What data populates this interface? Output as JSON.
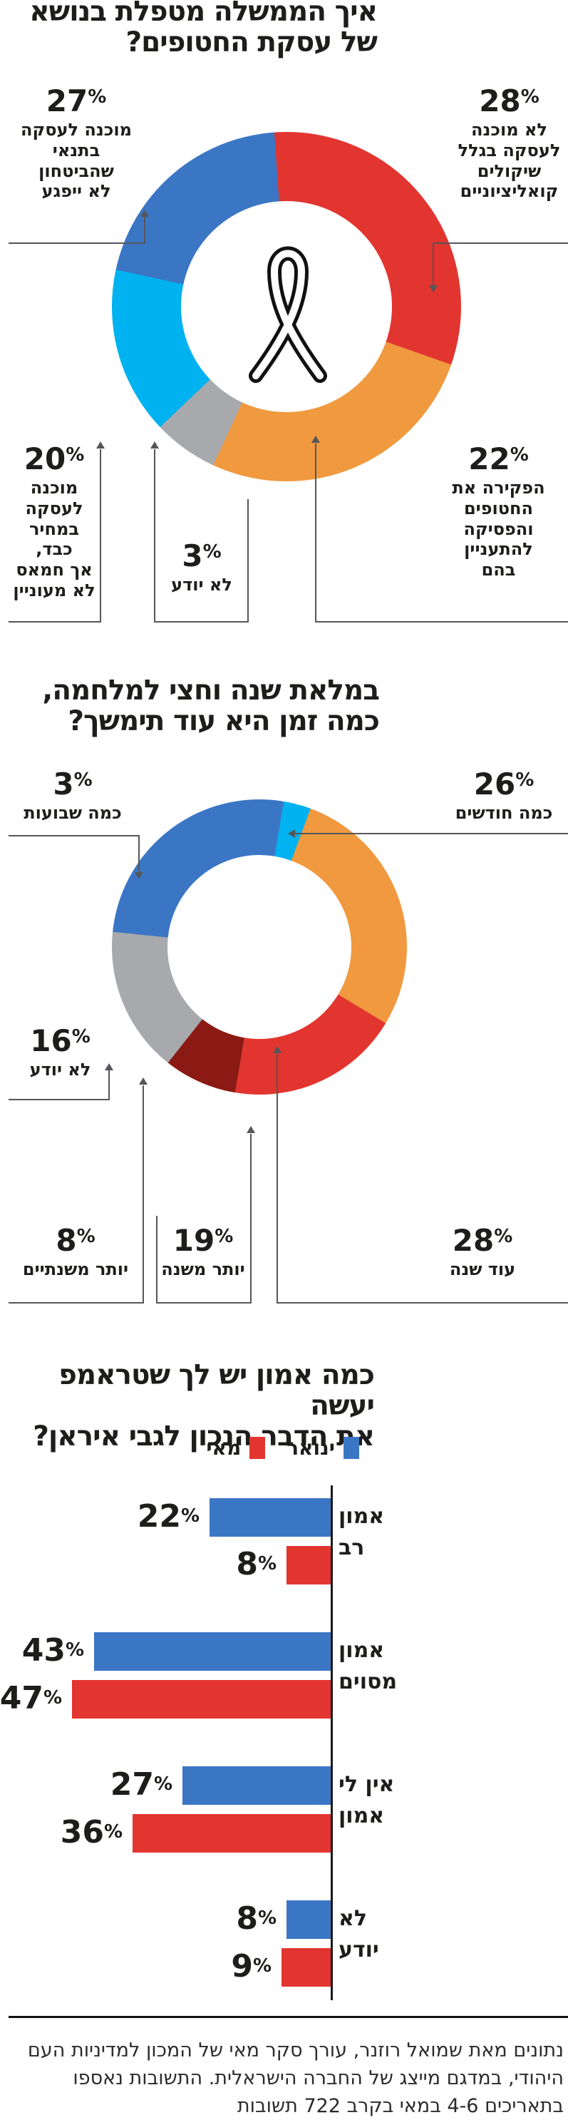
{
  "ui": {
    "percent_sign": "%"
  },
  "chart_data": [
    {
      "type": "pie",
      "subtype": "donut",
      "title": "איך הממשלה מטפלת בנושא\nשל עסקת החטופים?",
      "center_icon": "awareness-ribbon",
      "segments": [
        {
          "value": 28,
          "label": "לא מוכנה\nלעסקה בגלל\nשיקולים\nקואליציוניים",
          "color": "#e23530"
        },
        {
          "value": 22,
          "label": "הפקירה את\nהחטופים\nוהפסיקה\nלהתעניין\nבהם",
          "color": "#f0993f"
        },
        {
          "value": 3,
          "label": "לא יודע",
          "color": "#a7a9ac"
        },
        {
          "value": 20,
          "label": "מוכנה\nלעסקה\nבמחיר כבד,\nאך חמאס\nלא מעוניין",
          "color": "#00b2ef"
        },
        {
          "value": 27,
          "label": "מוכנה לעסקה\nבתנאי\nשהביטחון\nלא ייפגע",
          "color": "#3b76c4"
        }
      ]
    },
    {
      "type": "pie",
      "subtype": "donut",
      "title": "במלאת שנה וחצי למלחמה,\nכמה זמן היא עוד תימשך?",
      "segments": [
        {
          "value": 3,
          "label": "כמה שבועות",
          "color": "#00b2ef"
        },
        {
          "value": 28,
          "label": "עוד שנה",
          "color": "#f0993f"
        },
        {
          "value": 19,
          "label": "יותר משנה",
          "color": "#e23530"
        },
        {
          "value": 8,
          "label": "יותר משנתיים",
          "color": "#8a1a13"
        },
        {
          "value": 16,
          "label": "לא יודע",
          "color": "#a7a9ac"
        },
        {
          "value": 26,
          "label": "כמה חודשים",
          "color": "#3b76c4"
        }
      ]
    },
    {
      "type": "bar",
      "orientation": "horizontal",
      "title": "כמה אמון יש לך שטראמפ יעשה\nאת הדבר הנכון לגבי איראן?",
      "series": [
        {
          "name": "ינואר",
          "color": "#3b76c4"
        },
        {
          "name": "מאי",
          "color": "#e23530"
        }
      ],
      "categories": [
        "אמון\nרב",
        "אמון\nמסוים",
        "אין לי\nאמון",
        "לא\nיודע"
      ],
      "groups": [
        {
          "category": "אמון\nרב",
          "values": [
            22,
            8
          ]
        },
        {
          "category": "אמון\nמסוים",
          "values": [
            43,
            47
          ]
        },
        {
          "category": "אין לי\nאמון",
          "values": [
            27,
            36
          ]
        },
        {
          "category": "לא\nיודע",
          "values": [
            8,
            9
          ]
        }
      ],
      "xlim": [
        0,
        50
      ],
      "legend_position": "top-right"
    }
  ],
  "footer": {
    "text": "נתונים מאת שמואל רוזנר, עורך סקר מאי של המכון למדיניות העם\nהיהודי, במדגם מייצג של החברה הישראלית. התשובות נאספו\nבתאריכים 4-6 במאי בקרב 722 תשובות"
  }
}
